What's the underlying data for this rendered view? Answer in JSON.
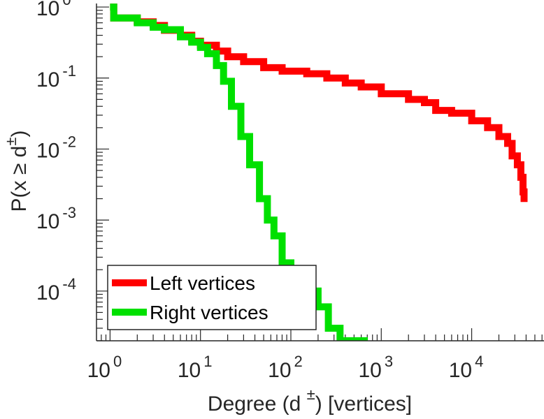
{
  "chart_data": {
    "type": "line",
    "xscale": "log",
    "yscale": "log",
    "xlim_exp": [
      -0.15,
      4.8
    ],
    "ylim_exp": [
      -4.7,
      0.05
    ],
    "x_ticks": [
      {
        "base": "10",
        "exp": "0"
      },
      {
        "base": "10",
        "exp": "1"
      },
      {
        "base": "10",
        "exp": "2"
      },
      {
        "base": "10",
        "exp": "3"
      },
      {
        "base": "10",
        "exp": "4"
      }
    ],
    "y_ticks": [
      {
        "base": "10",
        "exp": "0"
      },
      {
        "base": "10",
        "exp": "-1"
      },
      {
        "base": "10",
        "exp": "-2"
      },
      {
        "base": "10",
        "exp": "-3"
      },
      {
        "base": "10",
        "exp": "-4"
      }
    ],
    "xlabel": {
      "prefix": "Degree (d ",
      "sup": "±",
      "suffix": ") [vertices]"
    },
    "ylabel": {
      "prefix": "P(x ≥ d",
      "sup": "±",
      "suffix": ")"
    },
    "series": [
      {
        "name": "Left vertices",
        "color": "#ff0000",
        "points": [
          [
            1,
            1.0
          ],
          [
            1.1,
            0.7
          ],
          [
            2,
            0.62
          ],
          [
            3,
            0.55
          ],
          [
            4,
            0.47
          ],
          [
            6,
            0.4
          ],
          [
            8,
            0.33
          ],
          [
            10,
            0.29
          ],
          [
            15,
            0.24
          ],
          [
            20,
            0.2
          ],
          [
            30,
            0.17
          ],
          [
            50,
            0.14
          ],
          [
            80,
            0.125
          ],
          [
            150,
            0.115
          ],
          [
            250,
            0.1
          ],
          [
            400,
            0.085
          ],
          [
            600,
            0.075
          ],
          [
            1000,
            0.06
          ],
          [
            2000,
            0.05
          ],
          [
            3000,
            0.045
          ],
          [
            4000,
            0.035
          ],
          [
            6000,
            0.032
          ],
          [
            10000,
            0.025
          ],
          [
            15000,
            0.02
          ],
          [
            20000,
            0.015
          ],
          [
            25000,
            0.012
          ],
          [
            28000,
            0.008
          ],
          [
            32000,
            0.006
          ],
          [
            35000,
            0.004
          ],
          [
            37000,
            0.0025
          ],
          [
            38000,
            0.0018
          ]
        ]
      },
      {
        "name": "Right vertices",
        "color": "#00e000",
        "points": [
          [
            1,
            1.0
          ],
          [
            1.1,
            0.7
          ],
          [
            2,
            0.6
          ],
          [
            3,
            0.52
          ],
          [
            4,
            0.48
          ],
          [
            6,
            0.38
          ],
          [
            8,
            0.32
          ],
          [
            10,
            0.27
          ],
          [
            12,
            0.22
          ],
          [
            15,
            0.15
          ],
          [
            18,
            0.09
          ],
          [
            22,
            0.04
          ],
          [
            28,
            0.015
          ],
          [
            35,
            0.006
          ],
          [
            45,
            0.002
          ],
          [
            55,
            0.001
          ],
          [
            65,
            0.0006
          ],
          [
            80,
            0.00025
          ],
          [
            100,
            0.00015
          ],
          [
            150,
            0.0001
          ],
          [
            200,
            6e-05
          ],
          [
            260,
            3e-05
          ],
          [
            350,
            2e-05
          ],
          [
            600,
            2e-05
          ],
          [
            650,
            1.55e-05
          ]
        ]
      }
    ],
    "legend": {
      "position": "bottom-left",
      "entries": [
        "Left vertices",
        "Right vertices"
      ]
    },
    "grid": false
  }
}
